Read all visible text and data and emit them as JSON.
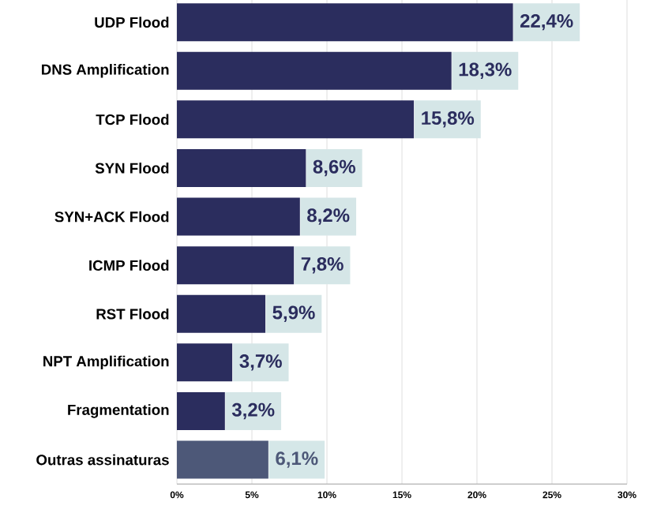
{
  "chart_data": {
    "type": "bar",
    "orientation": "horizontal",
    "categories": [
      "UDP Flood",
      "DNS Amplification",
      "TCP Flood",
      "SYN Flood",
      "SYN+ACK Flood",
      "ICMP Flood",
      "RST Flood",
      "NPT Amplification",
      "Fragmentation",
      "Outras assinaturas"
    ],
    "values": [
      22.4,
      18.3,
      15.8,
      8.6,
      8.2,
      7.8,
      5.9,
      3.7,
      3.2,
      6.1
    ],
    "value_labels": [
      "22,4%",
      "18,3%",
      "15,8%",
      "8,6%",
      "8,2%",
      "7,8%",
      "5,9%",
      "3,7%",
      "3,2%",
      "6,1%"
    ],
    "colors": [
      "#2b2d5e",
      "#2b2d5e",
      "#2b2d5e",
      "#2b2d5e",
      "#2b2d5e",
      "#2b2d5e",
      "#2b2d5e",
      "#2b2d5e",
      "#2b2d5e",
      "#4d5878"
    ],
    "xlim": [
      0,
      30
    ],
    "xticks": [
      {
        "value": 0,
        "label": "0%"
      },
      {
        "value": 5,
        "label": "5%"
      },
      {
        "value": 10,
        "label": "10%"
      },
      {
        "value": 15,
        "label": "15%"
      },
      {
        "value": 20,
        "label": "20%"
      },
      {
        "value": 25,
        "label": "25%"
      },
      {
        "value": 30,
        "label": "30%"
      }
    ],
    "grid": "x"
  }
}
